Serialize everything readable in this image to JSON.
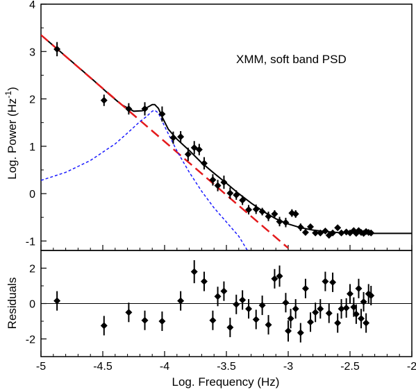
{
  "chart_data": [
    {
      "type": "scatter",
      "panel": "top",
      "annotation": "XMM, soft band PSD",
      "ylabel": "Log. Power (Hz",
      "ylabel_sup": "-1",
      "ylabel_close": ")",
      "xlim": [
        -5,
        -2
      ],
      "ylim": [
        -1.2,
        4
      ],
      "yticks": [
        "-1",
        "0",
        "1",
        "2",
        "3",
        "4"
      ],
      "colors": {
        "data": "#000000",
        "model": "#000000",
        "powerlaw": "#e41a1c",
        "lorentzian": "#1a1aff"
      },
      "series": [
        {
          "kind": "points",
          "x": [
            -4.87,
            -4.49,
            -4.29,
            -4.16,
            -4.02,
            -3.93,
            -3.87,
            -3.81,
            -3.76,
            -3.72,
            -3.68,
            -3.61,
            -3.57,
            -3.52,
            -3.47,
            -3.42,
            -3.37,
            -3.32,
            -3.26,
            -3.21,
            -3.16,
            -3.11,
            -3.07,
            -3.02,
            -2.97,
            -2.94,
            -2.9,
            -2.86,
            -2.82,
            -2.78,
            -2.74,
            -2.7,
            -2.67,
            -2.64,
            -2.6,
            -2.57,
            -2.53,
            -2.5,
            -2.47,
            -2.45,
            -2.43,
            -2.41,
            -2.39,
            -2.37,
            -2.35,
            -2.33
          ],
          "y": [
            3.05,
            1.97,
            1.79,
            1.79,
            1.68,
            1.18,
            1.2,
            0.83,
            0.97,
            0.93,
            0.64,
            0.29,
            0.17,
            0.24,
            0.01,
            -0.03,
            -0.14,
            -0.34,
            -0.33,
            -0.38,
            -0.48,
            -0.43,
            -0.59,
            -0.61,
            -0.41,
            -0.43,
            -0.71,
            -0.82,
            -0.7,
            -0.83,
            -0.83,
            -0.79,
            -0.88,
            -0.83,
            -0.72,
            -0.83,
            -0.81,
            -0.83,
            -0.78,
            -0.84,
            -0.78,
            -0.82,
            -0.84,
            -0.8,
            -0.82,
            -0.83
          ],
          "yerr": [
            0.15,
            0.12,
            0.12,
            0.14,
            0.16,
            0.13,
            0.12,
            0.14,
            0.14,
            0.12,
            0.13,
            0.12,
            0.12,
            0.14,
            0.12,
            0.1,
            0.1,
            0.1,
            0.1,
            0.08,
            0.1,
            0.08,
            0.1,
            0.1,
            0.08,
            0.08,
            0.08,
            0.06,
            0.06,
            0.05,
            0.06,
            0.05,
            0.05,
            0.05,
            0.05,
            0.05,
            0.05,
            0.05,
            0.05,
            0.05,
            0.05,
            0.05,
            0.05,
            0.05,
            0.05,
            0.05
          ]
        },
        {
          "kind": "model",
          "name": "total model",
          "x": [
            -5,
            -4.8,
            -4.6,
            -4.45,
            -4.35,
            -4.25,
            -4.18,
            -4.14,
            -4.1,
            -4.08,
            -4.05,
            -4.02,
            -3.97,
            -3.9,
            -3.8,
            -3.7,
            -3.6,
            -3.5,
            -3.4,
            -3.3,
            -3.2,
            -3.1,
            -3.0,
            -2.9,
            -2.8,
            -2.7,
            -2.6,
            -2.5,
            -2.4,
            -2.3,
            -2.2,
            -2.1,
            -2.0
          ],
          "y": [
            3.35,
            2.9,
            2.45,
            2.1,
            1.88,
            1.74,
            1.75,
            1.82,
            1.88,
            1.88,
            1.8,
            1.62,
            1.36,
            1.15,
            0.91,
            0.65,
            0.43,
            0.22,
            0.0,
            -0.2,
            -0.38,
            -0.53,
            -0.64,
            -0.72,
            -0.77,
            -0.8,
            -0.82,
            -0.83,
            -0.84,
            -0.84,
            -0.84,
            -0.84,
            -0.84
          ]
        },
        {
          "kind": "dashed",
          "name": "power law",
          "x": [
            -5,
            -4.5,
            -4.0,
            -3.5,
            -3.0
          ],
          "y": [
            3.35,
            2.22,
            1.1,
            -0.03,
            -1.15
          ]
        },
        {
          "kind": "dotted",
          "name": "lorentzian",
          "x": [
            -5,
            -4.8,
            -4.6,
            -4.4,
            -4.3,
            -4.2,
            -4.15,
            -4.1,
            -4.08,
            -4.05,
            -4.0,
            -3.9,
            -3.8,
            -3.7,
            -3.6,
            -3.5,
            -3.4,
            -3.33
          ],
          "y": [
            0.28,
            0.45,
            0.7,
            1.05,
            1.28,
            1.52,
            1.62,
            1.74,
            1.76,
            1.7,
            1.42,
            0.9,
            0.45,
            0.05,
            -0.3,
            -0.6,
            -0.9,
            -1.2
          ]
        }
      ]
    },
    {
      "type": "scatter",
      "panel": "bottom",
      "xlabel": "Log. Frequency (Hz)",
      "ylabel": "Residuals",
      "xlim": [
        -5,
        -2
      ],
      "ylim": [
        -3,
        3
      ],
      "xticks": [
        "-5",
        "-4.5",
        "-4",
        "-3.5",
        "-3",
        "-2.5",
        "-2"
      ],
      "yticks": [
        "-2",
        "0",
        "2"
      ],
      "x": [
        -4.87,
        -4.49,
        -4.29,
        -4.16,
        -4.02,
        -3.87,
        -3.76,
        -3.68,
        -3.61,
        -3.57,
        -3.52,
        -3.47,
        -3.42,
        -3.37,
        -3.32,
        -3.26,
        -3.21,
        -3.16,
        -3.11,
        -3.07,
        -3.02,
        -3.0,
        -2.98,
        -2.94,
        -2.9,
        -2.86,
        -2.82,
        -2.78,
        -2.74,
        -2.7,
        -2.67,
        -2.64,
        -2.6,
        -2.57,
        -2.53,
        -2.5,
        -2.47,
        -2.45,
        -2.43,
        -2.41,
        -2.39,
        -2.37,
        -2.35,
        -2.33
      ],
      "y": [
        0.15,
        -1.25,
        -0.5,
        -0.95,
        -1.0,
        0.15,
        1.8,
        1.25,
        -0.95,
        0.4,
        0.7,
        -1.35,
        -0.05,
        0.2,
        -0.3,
        -0.9,
        -0.1,
        -1.2,
        1.4,
        1.55,
        0.05,
        -1.55,
        -0.85,
        -0.3,
        -1.65,
        0.85,
        -1.05,
        -0.5,
        -0.3,
        1.25,
        -0.55,
        1.2,
        -1.1,
        -0.3,
        -0.25,
        0.55,
        -0.2,
        -0.6,
        0.85,
        -0.85,
        0.1,
        -1.1,
        0.55,
        0.45
      ],
      "yerr": [
        0.55,
        0.55,
        0.55,
        0.55,
        0.55,
        0.55,
        0.65,
        0.55,
        0.55,
        0.55,
        0.55,
        0.55,
        0.55,
        0.55,
        0.55,
        0.55,
        0.55,
        0.55,
        0.55,
        0.6,
        0.55,
        0.6,
        0.55,
        0.55,
        0.55,
        0.55,
        0.55,
        0.55,
        0.55,
        0.55,
        0.55,
        0.55,
        0.55,
        0.55,
        0.55,
        0.55,
        0.55,
        0.55,
        0.55,
        0.55,
        0.55,
        0.55,
        0.55,
        0.55
      ]
    }
  ]
}
